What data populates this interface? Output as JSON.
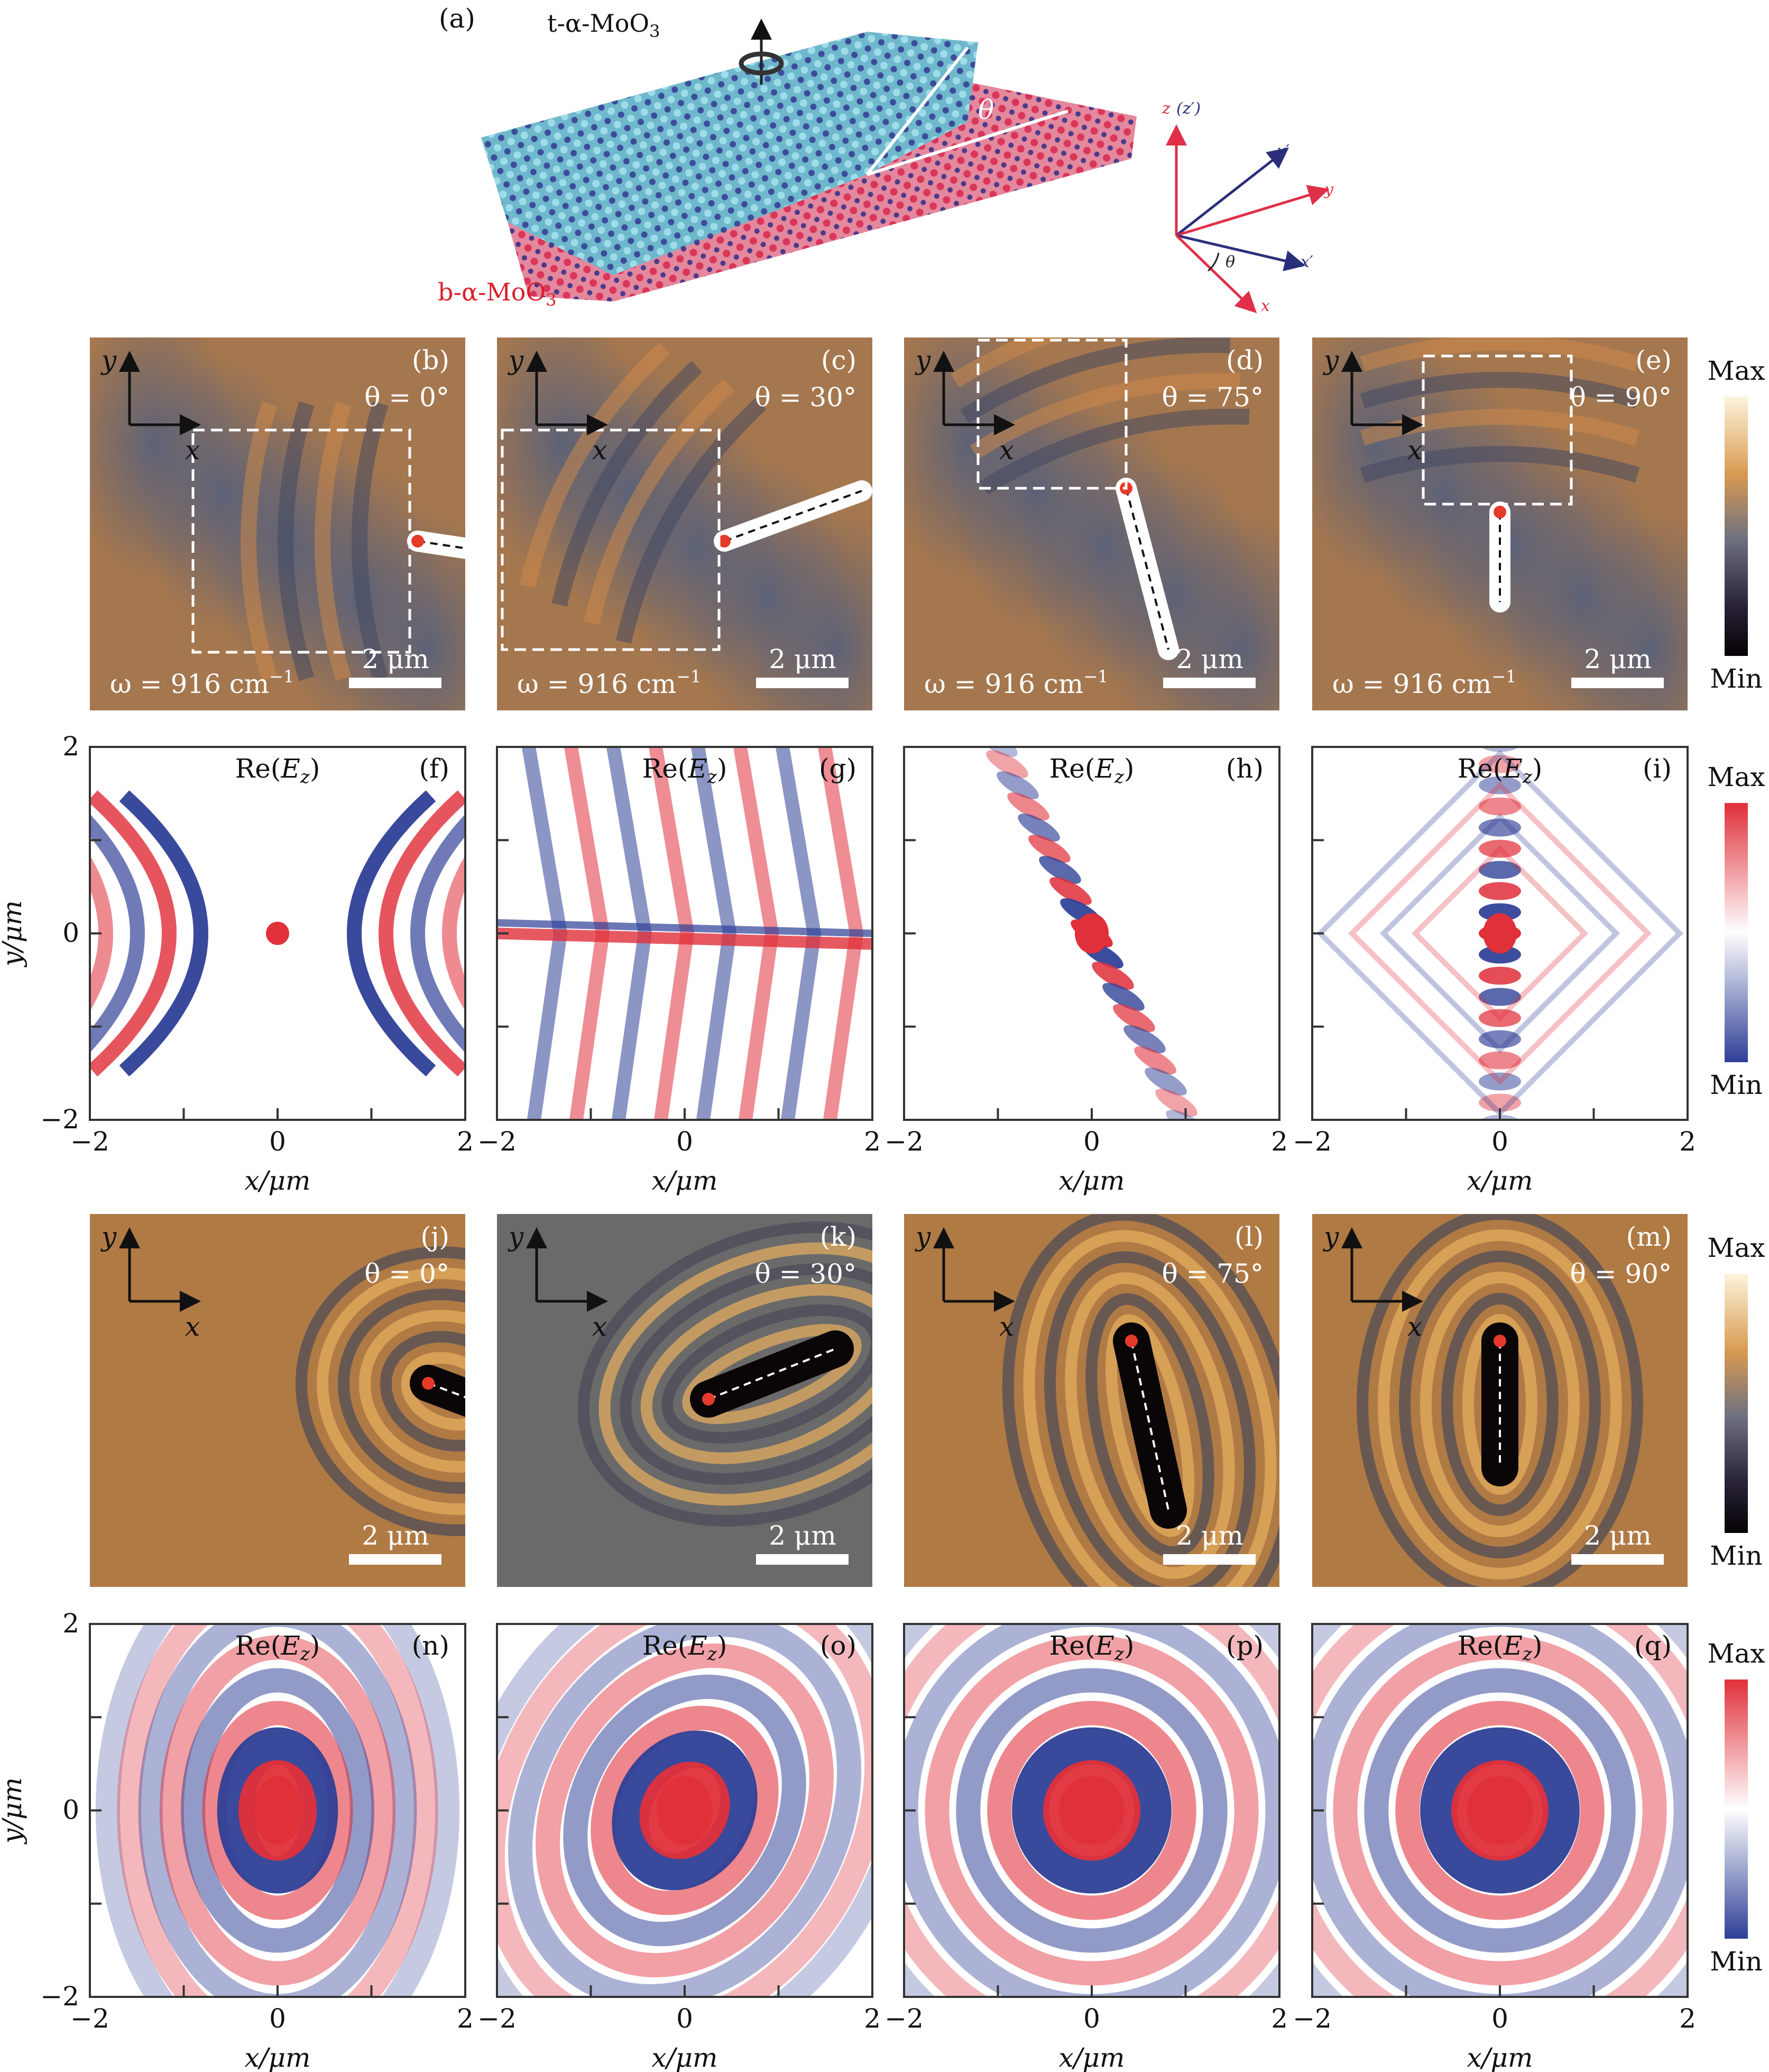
{
  "figure": {
    "panel_a": {
      "label": "(a)",
      "top_layer": {
        "prefix": "t-α-MoO",
        "sub": "3"
      },
      "bottom_layer": {
        "prefix": "b-α-MoO",
        "sub": "3"
      },
      "angle_symbol": "θ",
      "axes": {
        "z": "z",
        "z_prime": "(z′)",
        "y_prime": "y′",
        "y": "y",
        "x_prime": "x′",
        "x": "x",
        "theta": "θ"
      },
      "colors": {
        "top": "#6fb8cc",
        "bottom": "#d9365a",
        "axis_red": "#e03048",
        "axis_blue": "#2b2f7a"
      }
    },
    "common": {
      "omega": {
        "prefix": "ω = 916 cm",
        "sup": "−1"
      },
      "scale_bar": "2 μm",
      "axis_x": "x",
      "axis_y": "y",
      "re_label": {
        "prefix": "Re(",
        "var": "E",
        "sub": "z",
        "suffix": ")"
      },
      "xlabel": "x/μm",
      "ylabel": "y/μm",
      "tick_labels": [
        "−2",
        "0",
        "2"
      ]
    },
    "colorbars": [
      {
        "max": "Max",
        "min": "Min",
        "type": "experiment"
      },
      {
        "max": "Max",
        "min": "Min",
        "type": "simulation"
      },
      {
        "max": "Max",
        "min": "Min",
        "type": "experiment"
      },
      {
        "max": "Max",
        "min": "Min",
        "type": "simulation"
      }
    ],
    "rows": [
      {
        "type": "experiment",
        "panels": [
          {
            "label": "(b)",
            "theta": "θ = 0°",
            "angle": 0,
            "omega": true
          },
          {
            "label": "(c)",
            "theta": "θ = 30°",
            "angle": 30,
            "omega": true
          },
          {
            "label": "(d)",
            "theta": "θ = 75°",
            "angle": 75,
            "omega": true
          },
          {
            "label": "(e)",
            "theta": "θ = 90°",
            "angle": 90,
            "omega": true
          }
        ]
      },
      {
        "type": "simulation",
        "panels": [
          {
            "label": "(f)",
            "angle": 0
          },
          {
            "label": "(g)",
            "angle": 30
          },
          {
            "label": "(h)",
            "angle": 75
          },
          {
            "label": "(i)",
            "angle": 90
          }
        ]
      },
      {
        "type": "experiment2",
        "panels": [
          {
            "label": "(j)",
            "theta": "θ = 0°",
            "angle": 0
          },
          {
            "label": "(k)",
            "theta": "θ = 30°",
            "angle": 30
          },
          {
            "label": "(l)",
            "theta": "θ = 75°",
            "angle": 75
          },
          {
            "label": "(m)",
            "theta": "θ = 90°",
            "angle": 90
          }
        ]
      },
      {
        "type": "simulation2",
        "panels": [
          {
            "label": "(n)",
            "angle": 0
          },
          {
            "label": "(o)",
            "angle": 30
          },
          {
            "label": "(p)",
            "angle": 75
          },
          {
            "label": "(q)",
            "angle": 90
          }
        ]
      }
    ],
    "axis_range": {
      "x": [
        -2,
        2
      ],
      "y": [
        -2,
        2
      ],
      "ticks": [
        -2,
        -1,
        0,
        1,
        2
      ]
    },
    "colors": {
      "sim_red": "#e0303a",
      "sim_blue": "#2e3f96",
      "exp_orange": "#b8763f",
      "exp_blue": "#5f6a80"
    }
  }
}
